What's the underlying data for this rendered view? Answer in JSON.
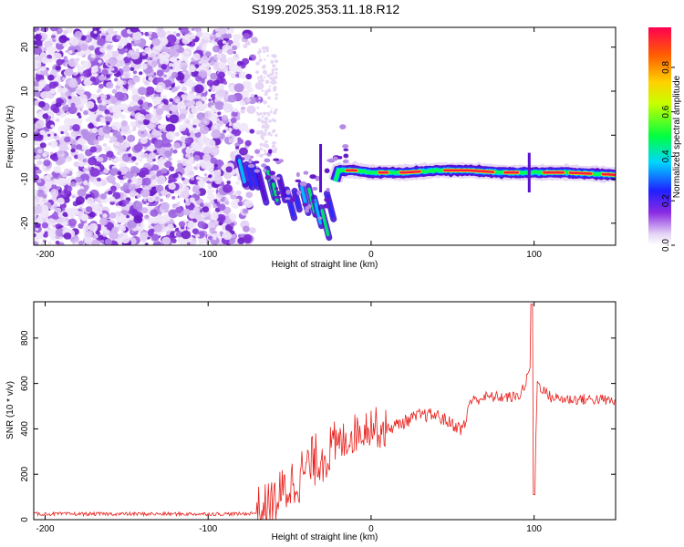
{
  "title": "S199.2025.353.11.18.R12",
  "chart_data": [
    {
      "type": "heatmap",
      "name": "spectrogram",
      "xlabel": "Height of straight line (km)",
      "ylabel": "Frequency (Hz)",
      "xlim": [
        -207,
        150
      ],
      "ylim": [
        -25,
        24.5
      ],
      "xticks": [
        -200,
        -100,
        0,
        100
      ],
      "yticks": [
        -20,
        -10,
        0,
        10,
        20
      ],
      "ridge": {
        "description": "Frequency of strongest amplitude vs height",
        "x": [
          -80,
          -70,
          -60,
          -50,
          -40,
          -30,
          -20,
          -10,
          0,
          10,
          20,
          40,
          60,
          80,
          100,
          120,
          150
        ],
        "y": [
          -9,
          -12,
          -14,
          -16,
          -17,
          -20,
          -8,
          -8,
          -8.5,
          -8.5,
          -8.5,
          -8,
          -8,
          -8.5,
          -8.5,
          -8.5,
          -9
        ]
      },
      "colorbar": {
        "label": "Normalized spectral amplitude",
        "range": [
          0,
          1
        ],
        "ticks": [
          "0.0",
          "0.2",
          "0.4",
          "0.6",
          "0.8"
        ]
      }
    },
    {
      "type": "line",
      "name": "snr",
      "xlabel": "Height of straight line (km)",
      "ylabel": "SNR (10 * v/v)",
      "xlim": [
        -207,
        150
      ],
      "ylim": [
        0,
        960
      ],
      "xticks": [
        -200,
        -100,
        0,
        100
      ],
      "yticks": [
        0,
        200,
        400,
        600,
        800
      ],
      "color": "#e8201c",
      "series": [
        {
          "name": "SNR",
          "x": [
            -207,
            -180,
            -150,
            -120,
            -100,
            -80,
            -70,
            -65,
            -60,
            -55,
            -50,
            -40,
            -35,
            -30,
            -25,
            -20,
            -15,
            -10,
            -5,
            0,
            5,
            10,
            20,
            30,
            40,
            50,
            55,
            58,
            60,
            70,
            80,
            90,
            95,
            98,
            100,
            102,
            110,
            120,
            130,
            140,
            150
          ],
          "y": [
            25,
            25,
            25,
            25,
            25,
            25,
            30,
            40,
            70,
            110,
            150,
            220,
            260,
            280,
            300,
            330,
            360,
            380,
            400,
            420,
            400,
            400,
            430,
            460,
            460,
            420,
            400,
            420,
            520,
            540,
            540,
            540,
            600,
            700,
            100,
            600,
            540,
            530,
            530,
            530,
            520
          ]
        }
      ]
    }
  ]
}
